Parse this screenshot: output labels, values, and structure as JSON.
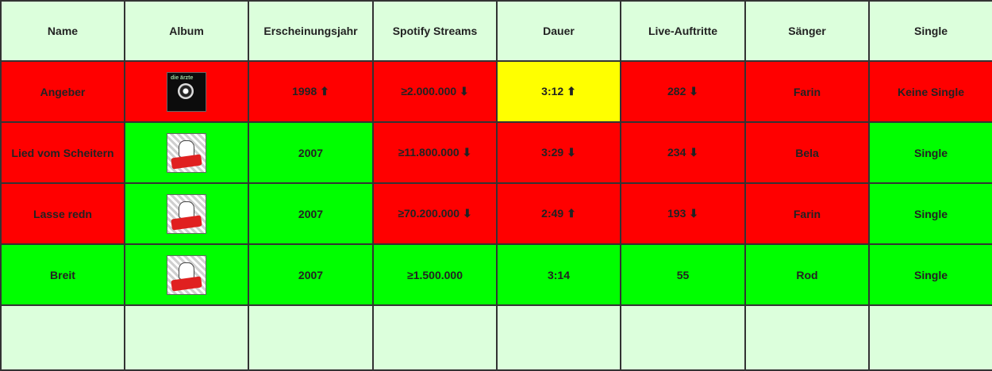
{
  "headers": [
    "Name",
    "Album",
    "Erscheinungsjahr",
    "Spotify Streams",
    "Dauer",
    "Live-Auftritte",
    "Sänger",
    "Single"
  ],
  "colors": {
    "red": "#ff0000",
    "green": "#00ff00",
    "yellow": "#ffff00",
    "background": "#dcffdc"
  },
  "rows": [
    {
      "name": {
        "text": "Angeber",
        "status": "red"
      },
      "album": {
        "cover": "dark-album-cover",
        "status": "red",
        "logo_text": "die ärzte"
      },
      "year": {
        "text": "1998 ⬆",
        "status": "red"
      },
      "streams": {
        "text": "≥2.000.000 ⬇",
        "status": "red"
      },
      "duration": {
        "text": "3:12 ⬆",
        "status": "yellow"
      },
      "live": {
        "text": "282 ⬇",
        "status": "red"
      },
      "singer": {
        "text": "Farin",
        "status": "red"
      },
      "single": {
        "text": "Keine Single",
        "status": "red"
      }
    },
    {
      "name": {
        "text": "Lied vom Scheitern",
        "status": "red"
      },
      "album": {
        "cover": "jazz-album-cover",
        "status": "green"
      },
      "year": {
        "text": "2007",
        "status": "green"
      },
      "streams": {
        "text": "≥11.800.000 ⬇",
        "status": "red"
      },
      "duration": {
        "text": "3:29 ⬇",
        "status": "red"
      },
      "live": {
        "text": "234 ⬇",
        "status": "red"
      },
      "singer": {
        "text": "Bela",
        "status": "red"
      },
      "single": {
        "text": "Single",
        "status": "green"
      }
    },
    {
      "name": {
        "text": "Lasse redn",
        "status": "red"
      },
      "album": {
        "cover": "jazz-album-cover",
        "status": "green"
      },
      "year": {
        "text": "2007",
        "status": "green"
      },
      "streams": {
        "text": "≥70.200.000 ⬇",
        "status": "red"
      },
      "duration": {
        "text": "2:49 ⬆",
        "status": "red"
      },
      "live": {
        "text": "193 ⬇",
        "status": "red"
      },
      "singer": {
        "text": "Farin",
        "status": "red"
      },
      "single": {
        "text": "Single",
        "status": "green"
      }
    },
    {
      "name": {
        "text": "Breit",
        "status": "green"
      },
      "album": {
        "cover": "jazz-album-cover",
        "status": "green"
      },
      "year": {
        "text": "2007",
        "status": "green"
      },
      "streams": {
        "text": "≥1.500.000",
        "status": "green"
      },
      "duration": {
        "text": "3:14",
        "status": "green"
      },
      "live": {
        "text": "55",
        "status": "green"
      },
      "singer": {
        "text": "Rod",
        "status": "green"
      },
      "single": {
        "text": "Single",
        "status": "green"
      }
    }
  ]
}
